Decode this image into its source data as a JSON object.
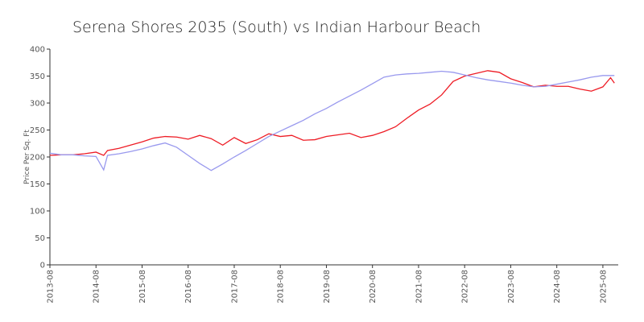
{
  "chart_data": {
    "type": "line",
    "title": "Serena Shores 2035 (South) vs Indian Harbour Beach",
    "y_label": "Price Per Sq. Ft",
    "x": [
      "2013-08",
      "2013-11",
      "2014-02",
      "2014-05",
      "2014-08",
      "2014-10",
      "2014-11",
      "2015-02",
      "2015-05",
      "2015-08",
      "2015-11",
      "2016-02",
      "2016-05",
      "2016-08",
      "2016-11",
      "2017-02",
      "2017-05",
      "2017-08",
      "2017-11",
      "2018-02",
      "2018-05",
      "2018-08",
      "2018-11",
      "2019-02",
      "2019-05",
      "2019-08",
      "2019-11",
      "2020-02",
      "2020-05",
      "2020-08",
      "2020-11",
      "2021-02",
      "2021-05",
      "2021-08",
      "2021-11",
      "2022-02",
      "2022-05",
      "2022-08",
      "2022-11",
      "2023-02",
      "2023-05",
      "2023-08",
      "2023-11",
      "2024-02",
      "2024-05",
      "2024-08",
      "2024-11",
      "2025-02",
      "2025-05",
      "2025-08",
      "2025-10",
      "2025-11"
    ],
    "series": [
      {
        "color": "#ee1c25",
        "values": [
          203,
          204,
          204,
          206,
          209,
          203,
          212,
          216,
          222,
          228,
          235,
          238,
          237,
          233,
          240,
          234,
          222,
          236,
          225,
          232,
          243,
          238,
          240,
          231,
          232,
          238,
          241,
          244,
          236,
          240,
          247,
          256,
          272,
          287,
          298,
          315,
          340,
          350,
          355,
          360,
          357,
          345,
          338,
          330,
          333,
          331,
          331,
          326,
          322,
          330,
          347,
          337
        ]
      },
      {
        "color": "#9999ee",
        "values": [
          207,
          204,
          204,
          202,
          201,
          176,
          203,
          206,
          210,
          215,
          221,
          226,
          218,
          203,
          188,
          175,
          187,
          200,
          212,
          225,
          238,
          248,
          258,
          268,
          280,
          290,
          302,
          313,
          324,
          336,
          348,
          352,
          354,
          355,
          357,
          359,
          357,
          352,
          347,
          343,
          340,
          337,
          333,
          330,
          331,
          335,
          339,
          343,
          348,
          351,
          351,
          351
        ]
      }
    ],
    "xlim": [
      "2013-08",
      "2025-12"
    ],
    "xticks": [
      "2013-08",
      "2014-08",
      "2015-08",
      "2016-08",
      "2017-08",
      "2018-08",
      "2019-08",
      "2020-08",
      "2021-08",
      "2022-08",
      "2023-08",
      "2024-08",
      "2025-08"
    ],
    "ylim": [
      0,
      400
    ],
    "yticks": [
      0,
      50,
      100,
      150,
      200,
      250,
      300,
      350,
      400
    ],
    "grid": false
  }
}
